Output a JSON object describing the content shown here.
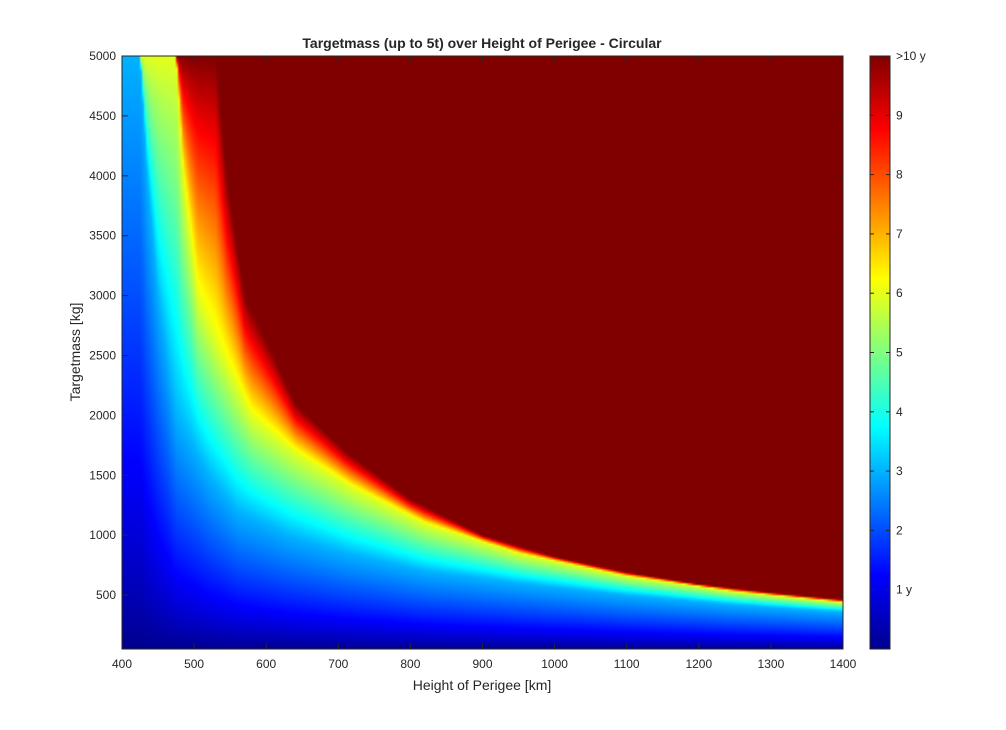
{
  "chart_data": {
    "type": "heatmap",
    "title": "Targetmass (up to 5t) over Height of Perigee - Circular",
    "xlabel": "Height of Perigee [km]",
    "ylabel": "Targetmass [kg]",
    "xlim": [
      400,
      1400
    ],
    "ylim": [
      50,
      5000
    ],
    "x_ticks": [
      400,
      500,
      600,
      700,
      800,
      900,
      1000,
      1100,
      1200,
      1300,
      1400
    ],
    "y_ticks": [
      500,
      1000,
      1500,
      2000,
      2500,
      3000,
      3500,
      4000,
      4500,
      5000
    ],
    "colormap": "jet",
    "grid": false,
    "colorbar": {
      "position": "right",
      "range": [
        0,
        10
      ],
      "ticks": [
        {
          "value": 1,
          "label": "1 y"
        },
        {
          "value": 2,
          "label": "2"
        },
        {
          "value": 3,
          "label": "3"
        },
        {
          "value": 4,
          "label": "4"
        },
        {
          "value": 5,
          "label": "5"
        },
        {
          "value": 6,
          "label": "6"
        },
        {
          "value": 7,
          "label": "7"
        },
        {
          "value": 8,
          "label": "8"
        },
        {
          "value": 9,
          "label": "9"
        },
        {
          "value": 10,
          "label": ">10 y"
        }
      ]
    },
    "contour_lines": [
      {
        "value": 3,
        "points": [
          [
            425,
            5000
          ],
          [
            435,
            4000
          ],
          [
            450,
            3000
          ],
          [
            475,
            2000
          ],
          [
            520,
            1500
          ],
          [
            560,
            1200
          ],
          [
            630,
            1000
          ],
          [
            710,
            850
          ],
          [
            820,
            700
          ],
          [
            950,
            600
          ],
          [
            1100,
            500
          ],
          [
            1250,
            420
          ],
          [
            1400,
            360
          ]
        ]
      },
      {
        "value": 6,
        "points": [
          [
            475,
            5000
          ],
          [
            485,
            4000
          ],
          [
            505,
            3000
          ],
          [
            540,
            2500
          ],
          [
            580,
            2000
          ],
          [
            640,
            1700
          ],
          [
            720,
            1400
          ],
          [
            820,
            1100
          ],
          [
            950,
            850
          ],
          [
            1100,
            660
          ],
          [
            1250,
            530
          ],
          [
            1400,
            440
          ]
        ]
      },
      {
        "value": 10,
        "points": [
          [
            530,
            5000
          ],
          [
            545,
            4000
          ],
          [
            570,
            3000
          ],
          [
            610,
            2500
          ],
          [
            640,
            2100
          ],
          [
            710,
            1700
          ],
          [
            800,
            1300
          ],
          [
            900,
            1000
          ],
          [
            1000,
            820
          ],
          [
            1100,
            690
          ],
          [
            1200,
            590
          ],
          [
            1300,
            520
          ],
          [
            1400,
            460
          ]
        ]
      }
    ],
    "scale": "years"
  }
}
